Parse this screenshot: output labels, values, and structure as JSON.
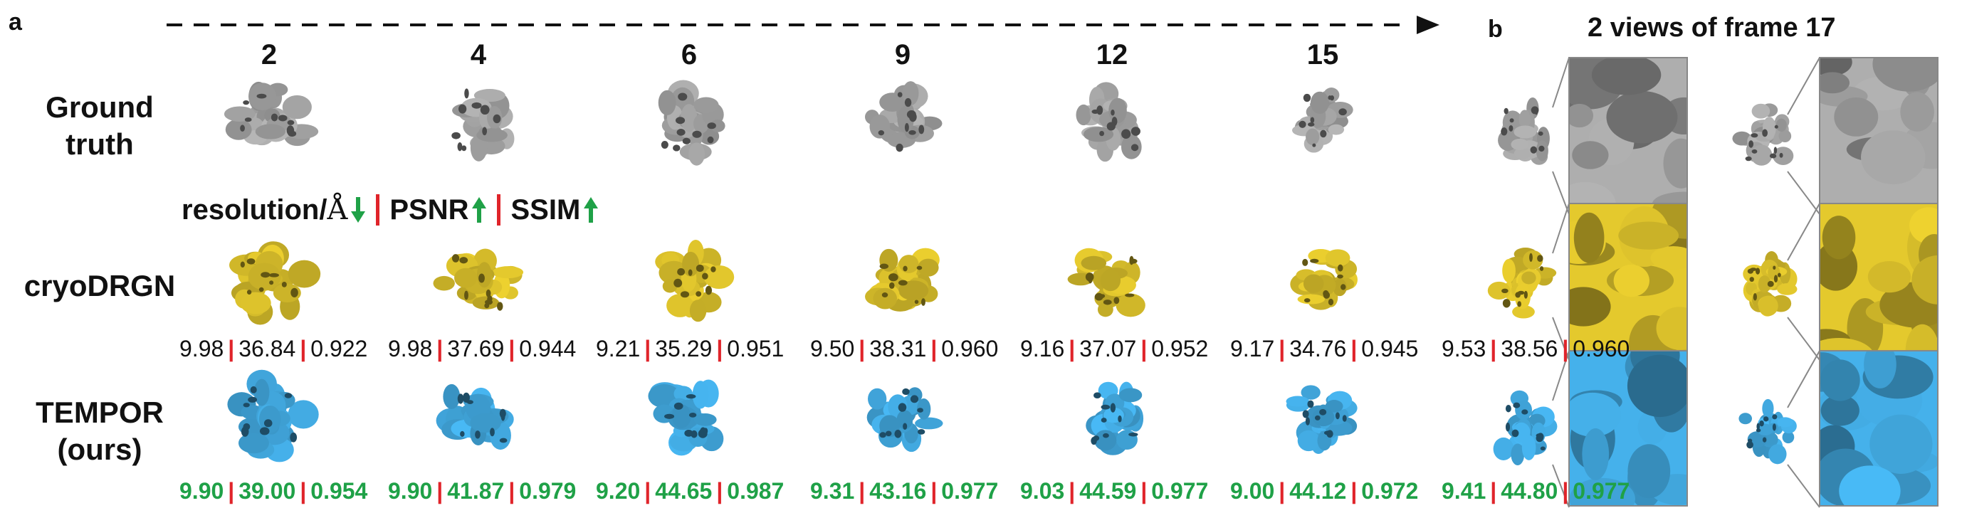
{
  "panel_a": {
    "letter": "a",
    "frames": [
      "2",
      "4",
      "6",
      "9",
      "12",
      "15"
    ],
    "row_labels": {
      "ground_truth": [
        "Ground",
        "truth"
      ],
      "cryodrgn": [
        "cryoDRGN"
      ],
      "tempor": [
        "TEMPOR",
        "(ours)"
      ]
    },
    "metric_legend": {
      "resolution": "resolution/",
      "angstrom": "Å",
      "psnr": "PSNR",
      "ssim": "SSIM"
    },
    "cryodrgn_metrics": [
      [
        "9.98",
        "36.84",
        "0.922"
      ],
      [
        "9.98",
        "37.69",
        "0.944"
      ],
      [
        "9.21",
        "35.29",
        "0.951"
      ],
      [
        "9.50",
        "38.31",
        "0.960"
      ],
      [
        "9.16",
        "37.07",
        "0.952"
      ],
      [
        "9.17",
        "34.76",
        "0.945"
      ]
    ],
    "tempor_metrics": [
      [
        "9.90",
        "39.00",
        "0.954"
      ],
      [
        "9.90",
        "41.87",
        "0.979"
      ],
      [
        "9.20",
        "44.65",
        "0.987"
      ],
      [
        "9.31",
        "43.16",
        "0.977"
      ],
      [
        "9.03",
        "44.59",
        "0.977"
      ],
      [
        "9.00",
        "44.12",
        "0.972"
      ]
    ]
  },
  "panel_b": {
    "letter": "b",
    "title": "2 views of frame 17",
    "cryodrgn_metrics": [
      "9.53",
      "38.56",
      "0.960"
    ],
    "tempor_metrics": [
      "9.41",
      "44.80",
      "0.977"
    ]
  },
  "colors": {
    "ground_truth": "#a6a6a6",
    "cryodrgn": "#d9bf2b",
    "tempor": "#42a9e0",
    "separator": "#e0242a",
    "good_metric": "#1fa147",
    "arrow_green": "#1fa147"
  }
}
